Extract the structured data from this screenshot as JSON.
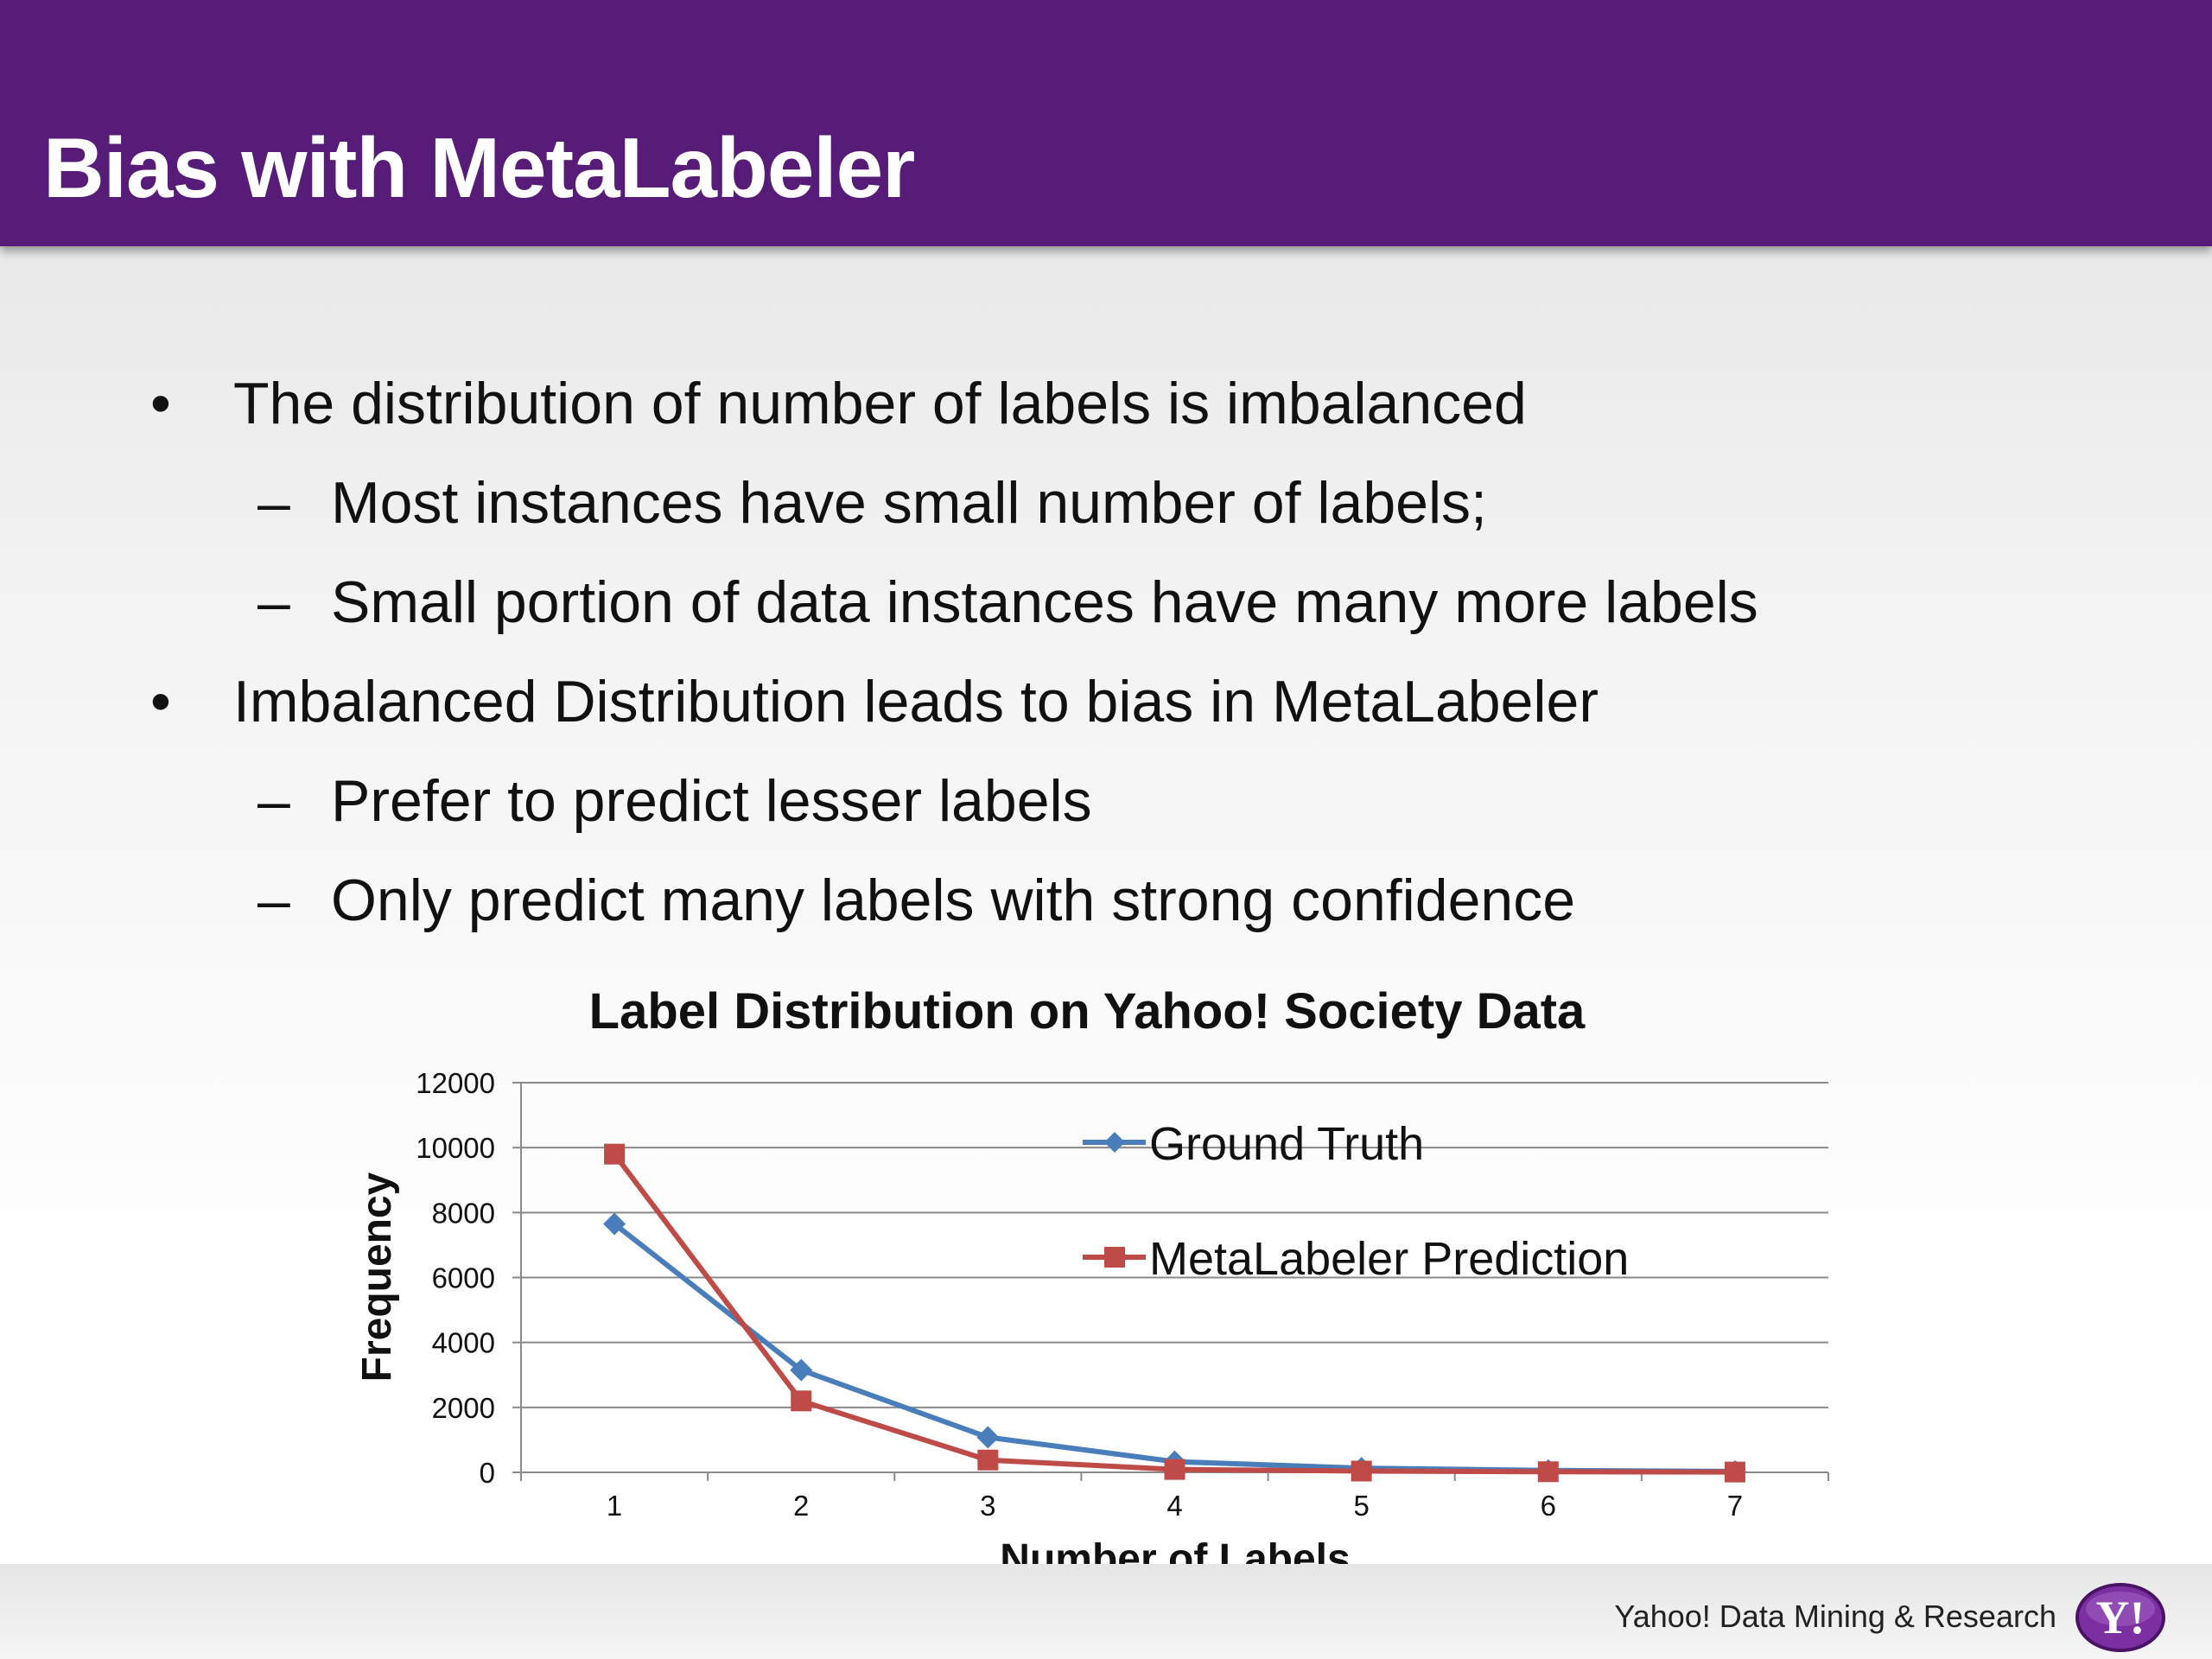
{
  "slide": {
    "title": "Bias with MetaLabeler",
    "bullets": [
      {
        "level": 1,
        "text": "The distribution of number of labels is imbalanced"
      },
      {
        "level": 2,
        "text": "Most instances have small number of labels;"
      },
      {
        "level": 2,
        "text": "Small portion of data instances have many more labels"
      },
      {
        "level": 1,
        "text": "Imbalanced Distribution leads to bias in MetaLabeler"
      },
      {
        "level": 2,
        "text": "Prefer to predict lesser labels"
      },
      {
        "level": 2,
        "text": "Only predict many labels with strong confidence"
      }
    ],
    "bullet_marks": {
      "level1": "•",
      "level2": "–"
    }
  },
  "chart_data": {
    "type": "line",
    "title": "Label Distribution on Yahoo! Society Data",
    "xlabel": "Number of Labels",
    "ylabel": "Frequency",
    "categories": [
      "1",
      "2",
      "3",
      "4",
      "5",
      "6",
      "7"
    ],
    "ylim": [
      0,
      12000
    ],
    "yticks": [
      "0",
      "2000",
      "4000",
      "6000",
      "8000",
      "10000",
      "12000"
    ],
    "grid": true,
    "legend_position": "top-right",
    "series": [
      {
        "name": "Ground Truth",
        "values": [
          7650,
          3150,
          1080,
          330,
          130,
          60,
          30
        ],
        "color": "#4a7ebb",
        "marker": "diamond"
      },
      {
        "name": "MetaLabeler Prediction",
        "values": [
          9800,
          2200,
          380,
          90,
          40,
          20,
          10
        ],
        "color": "#be4b48",
        "marker": "square"
      }
    ]
  },
  "footer": {
    "text": "Yahoo! Data Mining & Research",
    "logo": "Y!"
  }
}
